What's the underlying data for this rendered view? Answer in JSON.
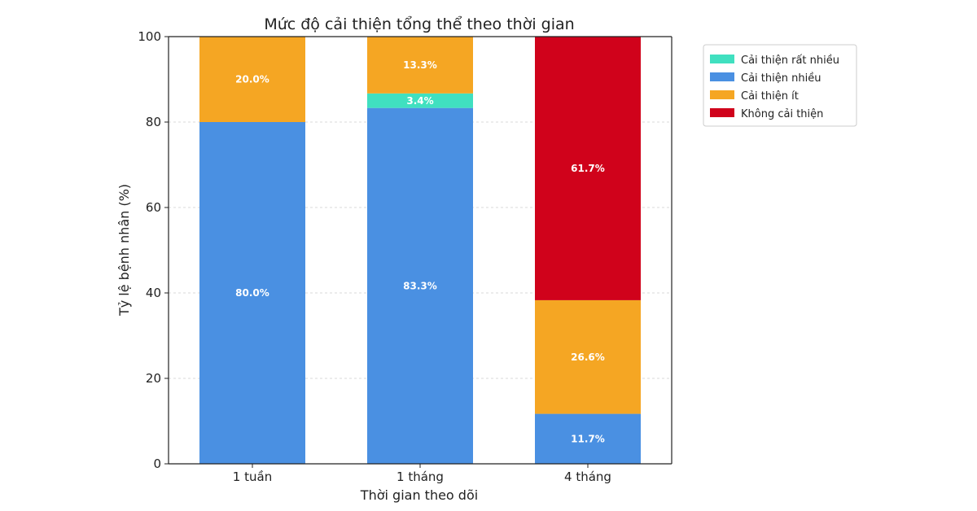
{
  "chart_data": {
    "type": "bar",
    "stacked": true,
    "title": "Mức độ cải thiện tổng thể theo thời gian",
    "xlabel": "Thời gian theo dõi",
    "ylabel": "Tỷ lệ bệnh nhân (%)",
    "ylim": [
      0,
      100
    ],
    "yticks": [
      0,
      20,
      40,
      60,
      80,
      100
    ],
    "grid": true,
    "legend_position": "upper-right-outside",
    "categories": [
      "1 tuần",
      "1 tháng",
      "4 tháng"
    ],
    "series": [
      {
        "name": "Cải thiện rất nhiều",
        "color": "#40e0c0",
        "values": [
          0,
          3.4,
          0
        ],
        "labels": [
          "",
          "3.4%",
          ""
        ]
      },
      {
        "name": "Cải thiện nhiều",
        "color": "#4a90e2",
        "values": [
          80.0,
          83.3,
          11.7
        ],
        "labels": [
          "80.0%",
          "83.3%",
          "11.7%"
        ]
      },
      {
        "name": "Cải thiện ít",
        "color": "#f5a623",
        "values": [
          20.0,
          13.3,
          26.6
        ],
        "labels": [
          "20.0%",
          "13.3%",
          "26.6%"
        ]
      },
      {
        "name": "Không cải thiện",
        "color": "#d0021b",
        "values": [
          0,
          0,
          61.7
        ],
        "labels": [
          "",
          "",
          "61.7%"
        ]
      }
    ],
    "stack_order": [
      "Cải thiện nhiều",
      "Cải thiện rất nhiều",
      "Cải thiện ít",
      "Không cải thiện"
    ]
  }
}
